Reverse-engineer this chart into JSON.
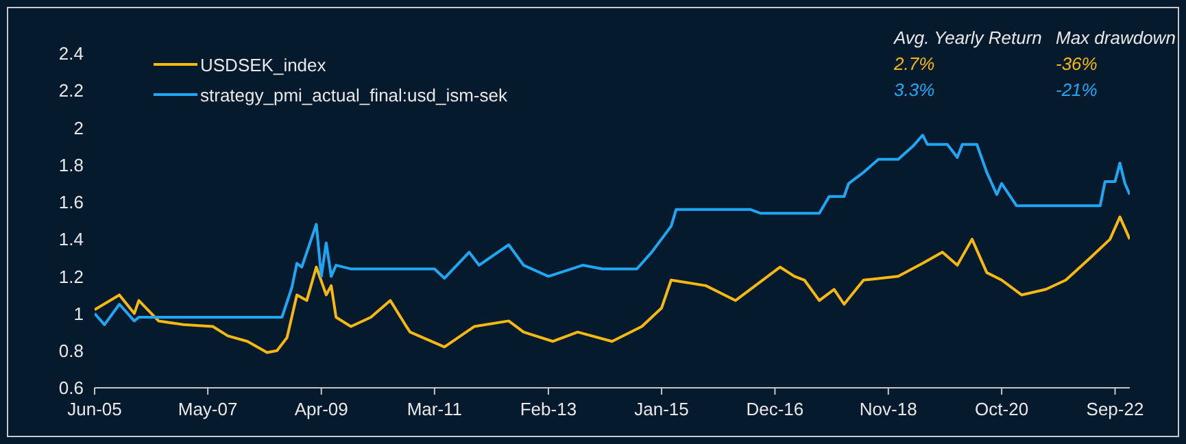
{
  "chart_data": {
    "type": "line",
    "xlim": [
      "2005-06",
      "2022-12"
    ],
    "xticks": [
      {
        "value": "2005-06",
        "label": "Jun-05"
      },
      {
        "value": "2007-05",
        "label": "May-07"
      },
      {
        "value": "2009-04",
        "label": "Apr-09"
      },
      {
        "value": "2011-03",
        "label": "Mar-11"
      },
      {
        "value": "2013-02",
        "label": "Feb-13"
      },
      {
        "value": "2015-01",
        "label": "Jan-15"
      },
      {
        "value": "2016-12",
        "label": "Dec-16"
      },
      {
        "value": "2018-11",
        "label": "Nov-18"
      },
      {
        "value": "2020-10",
        "label": "Oct-20"
      },
      {
        "value": "2022-09",
        "label": "Sep-22"
      }
    ],
    "ylim": [
      0.6,
      2.4
    ],
    "yticks": [
      0.6,
      0.8,
      1,
      1.2,
      1.4,
      1.6,
      1.8,
      2,
      2.2,
      2.4
    ],
    "legend": "top left",
    "grid": false,
    "series": [
      {
        "name": "USDSEK_index",
        "color": "#f7b90f",
        "x": [
          "2005-06",
          "2005-11",
          "2006-02",
          "2006-03",
          "2006-07",
          "2006-12",
          "2007-06",
          "2007-09",
          "2008-01",
          "2008-05",
          "2008-07",
          "2008-09",
          "2008-11",
          "2009-01",
          "2009-03",
          "2009-05",
          "2009-06",
          "2009-07",
          "2009-10",
          "2010-02",
          "2010-06",
          "2010-09",
          "2010-10",
          "2011-05",
          "2011-11",
          "2012-06",
          "2012-09",
          "2013-03",
          "2013-08",
          "2014-03",
          "2014-09",
          "2015-01",
          "2015-03",
          "2015-10",
          "2016-04",
          "2017-01",
          "2017-04",
          "2017-06",
          "2017-09",
          "2017-12",
          "2018-02",
          "2018-06",
          "2019-01",
          "2019-06",
          "2019-10",
          "2020-01",
          "2020-04",
          "2020-07",
          "2020-10",
          "2021-02",
          "2021-07",
          "2021-11",
          "2022-04",
          "2022-08",
          "2022-10",
          "2022-12"
        ],
        "values": [
          1.02,
          1.1,
          1.0,
          1.07,
          0.96,
          0.94,
          0.93,
          0.88,
          0.85,
          0.79,
          0.8,
          0.87,
          1.1,
          1.07,
          1.25,
          1.1,
          1.15,
          0.98,
          0.93,
          0.98,
          1.07,
          0.94,
          0.9,
          0.82,
          0.93,
          0.96,
          0.9,
          0.85,
          0.9,
          0.85,
          0.93,
          1.03,
          1.18,
          1.15,
          1.07,
          1.25,
          1.2,
          1.18,
          1.07,
          1.13,
          1.05,
          1.18,
          1.2,
          1.27,
          1.33,
          1.26,
          1.4,
          1.22,
          1.18,
          1.1,
          1.13,
          1.18,
          1.3,
          1.4,
          1.52,
          1.4
        ]
      },
      {
        "name": "strategy_pmi_actual_final:usd_ism-sek",
        "color": "#1ea7f5",
        "x": [
          "2005-06",
          "2005-08",
          "2005-11",
          "2006-02",
          "2006-03",
          "2008-08",
          "2008-10",
          "2008-11",
          "2008-12",
          "2009-03",
          "2009-04",
          "2009-05",
          "2009-06",
          "2009-07",
          "2009-10",
          "2011-03",
          "2011-05",
          "2011-10",
          "2011-12",
          "2012-06",
          "2012-09",
          "2013-02",
          "2013-09",
          "2014-01",
          "2014-08",
          "2014-11",
          "2015-03",
          "2015-04",
          "2016-07",
          "2016-09",
          "2017-09",
          "2017-11",
          "2018-02",
          "2018-03",
          "2018-06",
          "2018-09",
          "2019-01",
          "2019-04",
          "2019-06",
          "2019-07",
          "2019-11",
          "2020-01",
          "2020-02",
          "2020-05",
          "2020-07",
          "2020-09",
          "2020-10",
          "2021-01",
          "2022-06",
          "2022-07",
          "2022-09",
          "2022-10",
          "2022-11",
          "2022-12"
        ],
        "values": [
          1.0,
          0.94,
          1.05,
          0.96,
          0.98,
          0.98,
          1.14,
          1.27,
          1.25,
          1.48,
          1.2,
          1.38,
          1.2,
          1.26,
          1.24,
          1.24,
          1.19,
          1.33,
          1.26,
          1.37,
          1.26,
          1.2,
          1.26,
          1.24,
          1.24,
          1.33,
          1.47,
          1.56,
          1.56,
          1.54,
          1.54,
          1.63,
          1.63,
          1.7,
          1.76,
          1.83,
          1.83,
          1.9,
          1.96,
          1.91,
          1.91,
          1.84,
          1.91,
          1.91,
          1.76,
          1.64,
          1.7,
          1.58,
          1.58,
          1.71,
          1.71,
          1.81,
          1.7,
          1.64
        ]
      }
    ],
    "annotations": [
      "Avg. Yearly Return",
      "Max drawdown",
      "2.7%",
      "-36%",
      "3.3%",
      "-21%"
    ]
  }
}
